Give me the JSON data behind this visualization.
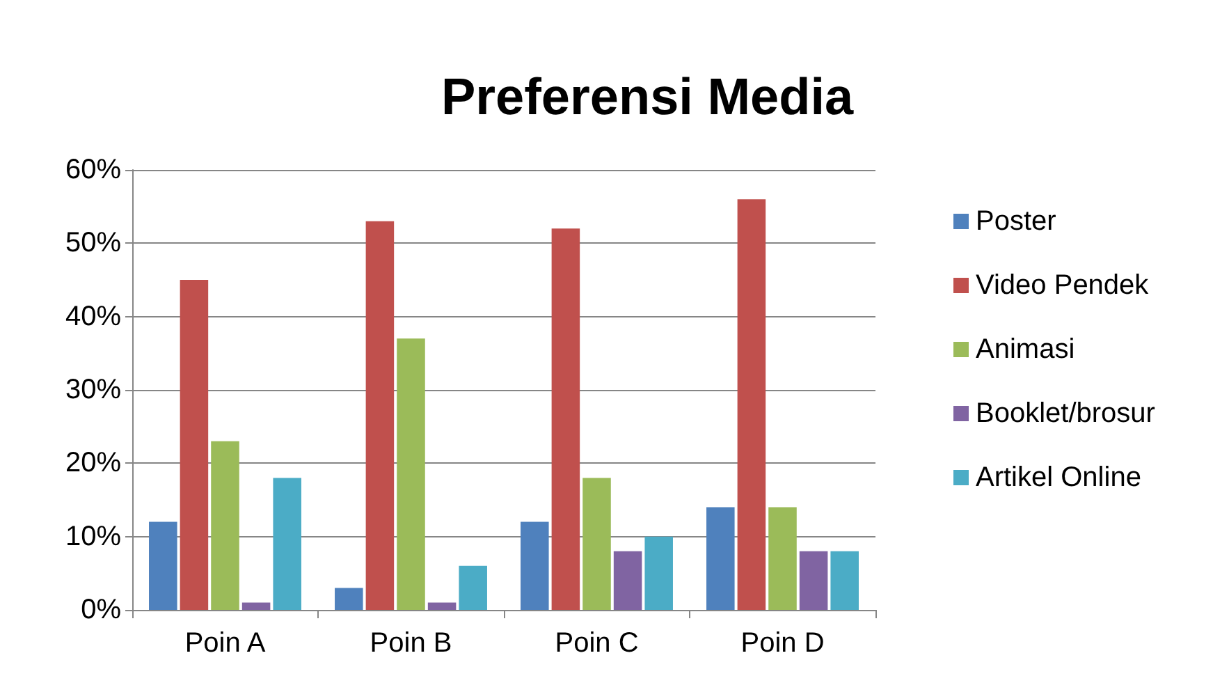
{
  "chart_data": {
    "type": "bar",
    "title": "Preferensi Media",
    "categories": [
      "Poin A",
      "Poin B",
      "Poin C",
      "Poin D"
    ],
    "series": [
      {
        "name": "Poster",
        "color": "#4f81bd",
        "values": [
          12,
          3,
          12,
          14
        ]
      },
      {
        "name": "Video Pendek",
        "color": "#c0504d",
        "values": [
          45,
          53,
          52,
          56
        ]
      },
      {
        "name": "Animasi",
        "color": "#9bbb59",
        "values": [
          23,
          37,
          18,
          14
        ]
      },
      {
        "name": "Booklet/brosur",
        "color": "#8064a2",
        "values": [
          1,
          1,
          8,
          8
        ]
      },
      {
        "name": "Artikel Online",
        "color": "#4bacc6",
        "values": [
          18,
          6,
          10,
          8
        ]
      }
    ],
    "ylim": [
      0,
      60
    ],
    "yticks": [
      {
        "value": 0,
        "label": "0%"
      },
      {
        "value": 10,
        "label": "10%"
      },
      {
        "value": 20,
        "label": "20%"
      },
      {
        "value": 30,
        "label": "30%"
      },
      {
        "value": 40,
        "label": "40%"
      },
      {
        "value": 50,
        "label": "50%"
      },
      {
        "value": 60,
        "label": "60%"
      }
    ],
    "grid": "y",
    "legend": "right"
  }
}
